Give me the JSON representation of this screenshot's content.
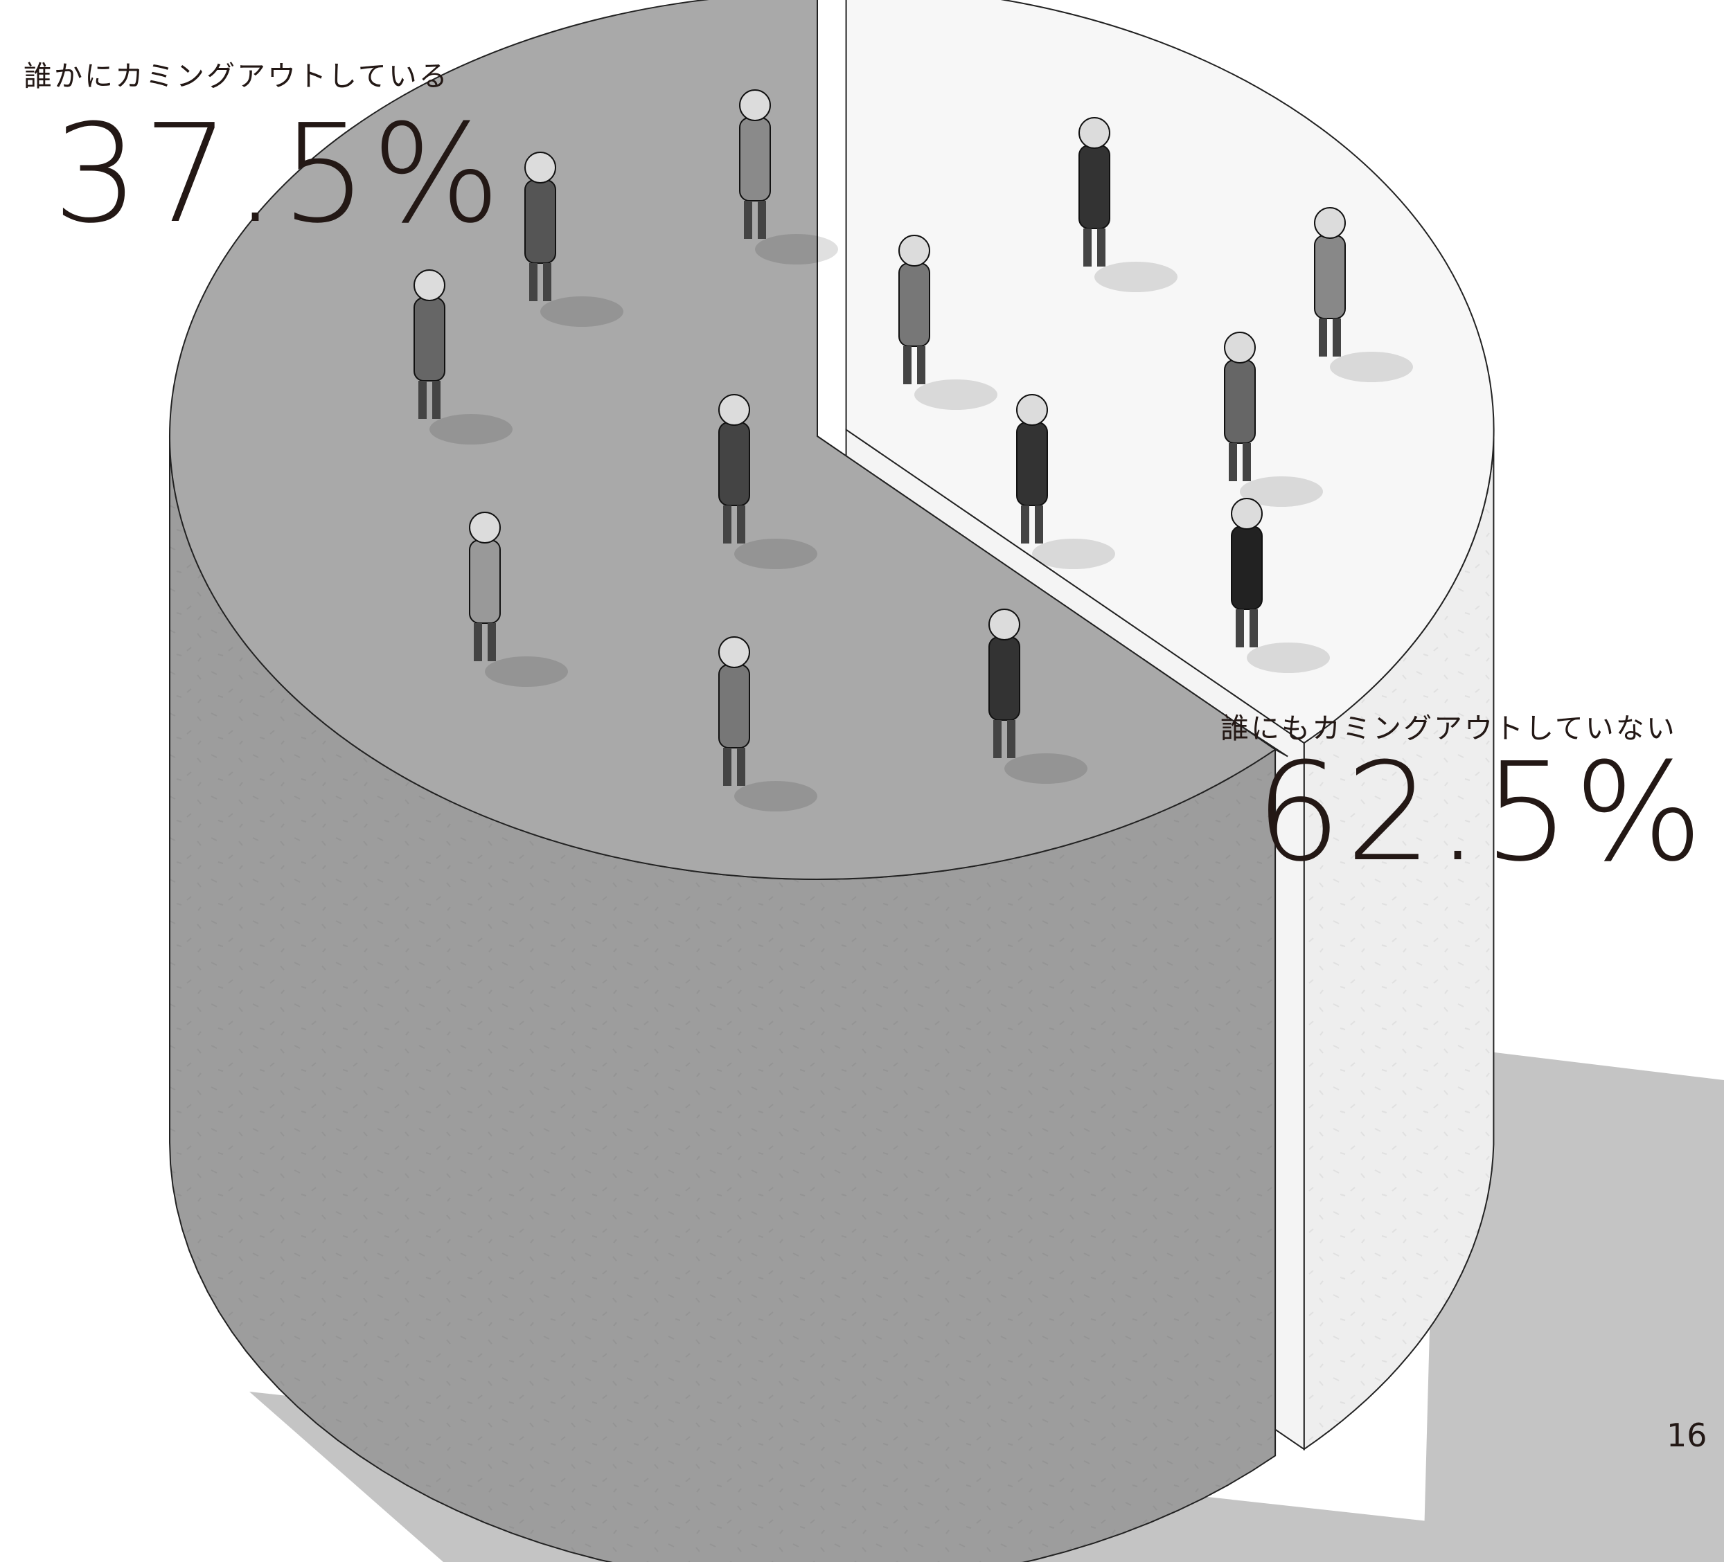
{
  "chart_data": {
    "type": "pie",
    "slices": [
      {
        "label": "誰かにカミングアウトしている",
        "value": 37.5,
        "value_label": "37.5%",
        "color": "#f7f7f7"
      },
      {
        "label": "誰にもカミングアウトしていない",
        "value": 62.5,
        "value_label": "62.5%",
        "color": "#a9a9a9"
      }
    ],
    "style": "3D cylinder pie with small human figures standing on top",
    "legend": "none (direct labels)"
  },
  "page_number": "16"
}
